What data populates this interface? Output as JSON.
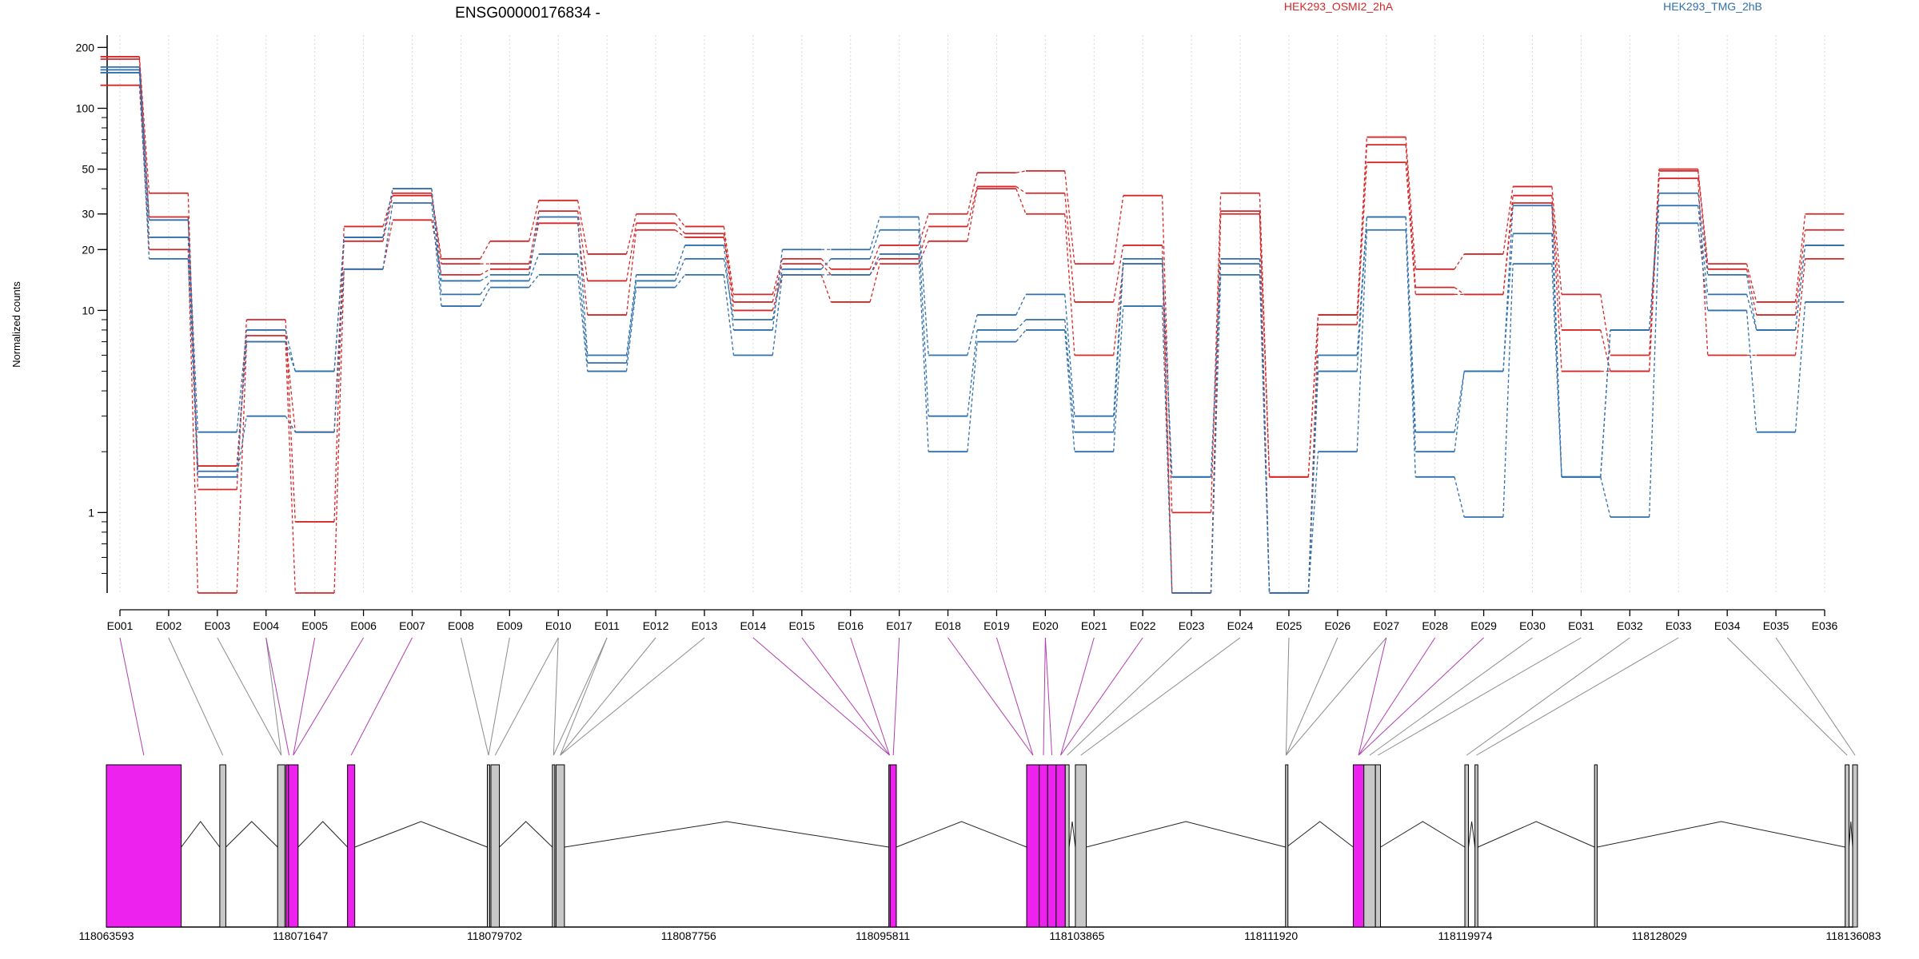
{
  "chart_data": {
    "type": "line",
    "title": "ENSG00000176834 -",
    "ylabel": "Normalized counts",
    "yscale": "log",
    "ylim": [
      0.4,
      230
    ],
    "yticks": [
      "1",
      "10",
      "20",
      "30",
      "50",
      "100",
      "200"
    ],
    "categories": [
      "E001",
      "E002",
      "E003",
      "E004",
      "E005",
      "E006",
      "E007",
      "E008",
      "E009",
      "E010",
      "E011",
      "E012",
      "E013",
      "E014",
      "E015",
      "E016",
      "E017",
      "E018",
      "E019",
      "E020",
      "E021",
      "E022",
      "E023",
      "E024",
      "E025",
      "E026",
      "E027",
      "E028",
      "E029",
      "E030",
      "E031",
      "E032",
      "E033",
      "E034",
      "E035",
      "E036"
    ],
    "legend": [
      {
        "label": "HEK293_OSMI2_2hA",
        "color": "#d62728"
      },
      {
        "label": "HEK293_TMG_2hB",
        "color": "#2f6fad"
      }
    ],
    "colors": {
      "condition_a": "#d62728",
      "condition_b": "#2f6fad",
      "exon_highlight": "#ee22ee",
      "exon_plain": "#c8c8c8"
    },
    "series": [
      {
        "group": "a",
        "values": [
          180,
          38,
          1.3,
          9,
          0.9,
          26,
          38,
          18,
          22,
          35,
          19,
          30,
          26,
          12,
          18,
          16,
          21,
          30,
          48,
          49,
          17,
          37,
          1.0,
          38,
          1.5,
          9.5,
          72,
          16,
          19,
          41,
          12,
          6,
          50,
          17,
          11,
          30
        ]
      },
      {
        "group": "a",
        "values": [
          175,
          29,
          1.7,
          7.5,
          2.5,
          22,
          37,
          17,
          17,
          31,
          14,
          27,
          24,
          11,
          17,
          15,
          18,
          26,
          41,
          38,
          11,
          21,
          0.4,
          31,
          1.5,
          9.5,
          66,
          13,
          12,
          37,
          8,
          5,
          49,
          16,
          9.5,
          25
        ]
      },
      {
        "group": "a",
        "values": [
          130,
          20,
          0.4,
          7,
          0.4,
          16,
          28,
          15,
          16,
          27,
          9.5,
          25,
          23,
          10,
          15,
          11,
          17,
          22,
          40,
          30,
          6,
          17,
          0.4,
          30,
          0.4,
          8.5,
          54,
          12,
          12,
          34,
          5,
          5,
          45,
          6,
          6,
          18
        ]
      },
      {
        "group": "b",
        "values": [
          160,
          28,
          2.5,
          8,
          5,
          23,
          40,
          14,
          15,
          29,
          6,
          15,
          21,
          8,
          20,
          20,
          29,
          6,
          9.5,
          12,
          3,
          18,
          1.5,
          18,
          0.4,
          6,
          29,
          2.5,
          5,
          33,
          1.5,
          8,
          38,
          15,
          8,
          21
        ]
      },
      {
        "group": "b",
        "values": [
          155,
          23,
          1.6,
          7,
          5,
          23,
          40,
          12,
          14,
          19,
          5.5,
          14,
          18,
          9,
          16,
          18,
          25,
          3,
          8,
          9,
          2.5,
          17,
          1.5,
          17,
          0.4,
          5,
          29,
          2,
          5,
          24,
          1.5,
          8,
          33,
          12,
          8,
          21
        ]
      },
      {
        "group": "b",
        "values": [
          150,
          18,
          1.5,
          3,
          2.5,
          16,
          34,
          10.5,
          13,
          15,
          5,
          13,
          15,
          6,
          15,
          15,
          19,
          2,
          7,
          8,
          2,
          10.5,
          0.4,
          15,
          0.4,
          2,
          25,
          1.5,
          0.95,
          17,
          1.5,
          0.95,
          27,
          10,
          2.5,
          11
        ]
      }
    ],
    "genome_axis_labels": [
      "118063593",
      "118071647",
      "118079702",
      "118087756",
      "118095811",
      "118103865",
      "118111920",
      "118119974",
      "118128029",
      "118136083"
    ],
    "genome_range": [
      118063593,
      118136083
    ],
    "exon_starts": [
      118063593,
      118068300,
      118070700,
      118071050,
      118071150,
      118073600,
      118079400,
      118079550,
      118082100,
      118082250,
      118096060,
      118096120,
      118101780,
      118102300,
      118102650,
      118103000,
      118103380,
      118103800,
      118112520,
      118115330,
      118115770,
      118116250,
      118119960,
      118120380,
      118125340,
      118135740,
      118136050
    ],
    "exon_ends": [
      118066700,
      118068550,
      118071000,
      118071300,
      118071550,
      118073900,
      118079500,
      118079900,
      118082200,
      118082600,
      118096120,
      118096370,
      118102300,
      118102650,
      118103000,
      118103380,
      118103540,
      118104250,
      118112560,
      118115770,
      118116250,
      118116460,
      118120110,
      118120500,
      118125450,
      118135900,
      118136250
    ],
    "exon_highlight": [
      true,
      false,
      false,
      true,
      true,
      true,
      false,
      false,
      false,
      false,
      true,
      true,
      true,
      true,
      true,
      true,
      false,
      false,
      false,
      true,
      false,
      false,
      false,
      false,
      false,
      false,
      false
    ],
    "bin_links": [
      [
        0,
        0
      ],
      [
        1,
        1
      ],
      [
        2,
        2
      ],
      [
        3,
        2
      ],
      [
        3,
        3
      ],
      [
        4,
        4
      ],
      [
        5,
        4
      ],
      [
        6,
        5
      ],
      [
        7,
        6
      ],
      [
        8,
        6
      ],
      [
        9,
        7
      ],
      [
        9,
        8
      ],
      [
        10,
        8
      ],
      [
        10,
        9
      ],
      [
        11,
        9
      ],
      [
        12,
        9
      ],
      [
        13,
        10
      ],
      [
        14,
        10
      ],
      [
        15,
        10
      ],
      [
        16,
        11
      ],
      [
        17,
        12
      ],
      [
        18,
        12
      ],
      [
        19,
        13
      ],
      [
        19,
        14
      ],
      [
        20,
        15
      ],
      [
        21,
        15
      ],
      [
        22,
        16
      ],
      [
        23,
        17
      ],
      [
        24,
        18
      ],
      [
        25,
        18
      ],
      [
        26,
        18
      ],
      [
        26,
        19
      ],
      [
        27,
        19
      ],
      [
        28,
        19
      ],
      [
        29,
        20
      ],
      [
        30,
        21
      ],
      [
        31,
        22
      ],
      [
        32,
        23
      ],
      [
        33,
        25
      ],
      [
        34,
        26
      ]
    ]
  }
}
